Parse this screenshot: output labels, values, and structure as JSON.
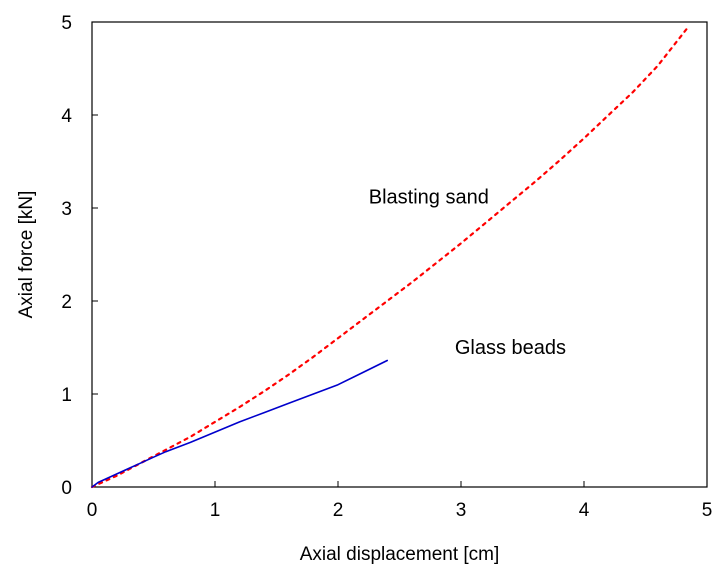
{
  "chart_data": {
    "type": "line",
    "title": "",
    "xlabel": "Axial displacement [cm]",
    "ylabel": "Axial force [kN]",
    "xlim": [
      0,
      5
    ],
    "ylim": [
      0,
      5
    ],
    "xticks": [
      "0",
      "1",
      "2",
      "3",
      "4",
      "5"
    ],
    "yticks": [
      "0",
      "1",
      "2",
      "3",
      "4",
      "5"
    ],
    "grid": false,
    "legend": "none",
    "series": [
      {
        "name": "Blasting sand",
        "style": "dotted",
        "color": "#ff0000",
        "x": [
          0,
          0.1,
          0.2,
          0.3,
          0.4,
          0.5,
          0.6,
          0.8,
          1.0,
          1.2,
          1.4,
          1.6,
          1.8,
          2.0,
          2.2,
          2.4,
          2.6,
          2.8,
          3.0,
          3.2,
          3.4,
          3.6,
          3.8,
          4.0,
          4.2,
          4.4,
          4.6,
          4.85
        ],
        "y": [
          0,
          0.06,
          0.12,
          0.19,
          0.26,
          0.33,
          0.4,
          0.54,
          0.7,
          0.86,
          1.03,
          1.21,
          1.4,
          1.6,
          1.8,
          2.0,
          2.2,
          2.41,
          2.62,
          2.84,
          3.06,
          3.28,
          3.51,
          3.75,
          4.0,
          4.25,
          4.53,
          4.95
        ]
      },
      {
        "name": "Glass beads",
        "style": "solid",
        "color": "#0000cc",
        "x": [
          0,
          0.05,
          0.1,
          0.2,
          0.3,
          0.4,
          0.5,
          0.6,
          0.8,
          1.0,
          1.2,
          1.4,
          1.6,
          1.8,
          2.0,
          2.2,
          2.4
        ],
        "y": [
          0,
          0.05,
          0.08,
          0.14,
          0.2,
          0.26,
          0.32,
          0.38,
          0.48,
          0.59,
          0.7,
          0.8,
          0.9,
          1.0,
          1.1,
          1.23,
          1.36
        ]
      }
    ],
    "annotations": [
      {
        "text": "Blasting sand",
        "x": 2.25,
        "y": 3.05
      },
      {
        "text": "Glass beads",
        "x": 2.95,
        "y": 1.43
      }
    ]
  }
}
